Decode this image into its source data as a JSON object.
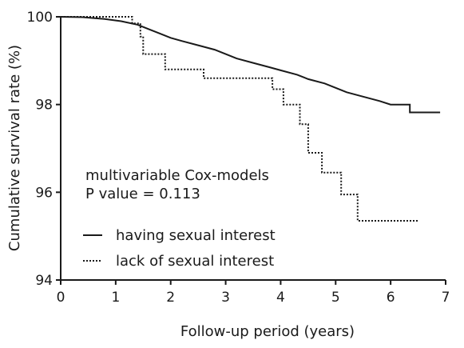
{
  "chart_data": {
    "type": "line",
    "xlabel": "Follow-up period (years)",
    "ylabel": "Cumulative survival rate (%)",
    "xlim": [
      0,
      7
    ],
    "ylim": [
      94,
      100
    ],
    "xticks": [
      "0",
      "1",
      "2",
      "3",
      "4",
      "5",
      "6",
      "7"
    ],
    "yticks": [
      "94",
      "96",
      "98",
      "100"
    ],
    "grid": false,
    "annotation": [
      "multivariable Cox-models",
      "P value = 0.113"
    ],
    "legend_position": "lower-left",
    "series": [
      {
        "name": "having sexual interest",
        "style": "solid",
        "points": [
          [
            0,
            100
          ],
          [
            0.4,
            99.99
          ],
          [
            0.8,
            99.95
          ],
          [
            1.1,
            99.9
          ],
          [
            1.4,
            99.82
          ],
          [
            1.6,
            99.72
          ],
          [
            1.8,
            99.62
          ],
          [
            2.0,
            99.52
          ],
          [
            2.2,
            99.45
          ],
          [
            2.5,
            99.35
          ],
          [
            2.8,
            99.25
          ],
          [
            3.0,
            99.15
          ],
          [
            3.2,
            99.05
          ],
          [
            3.5,
            98.95
          ],
          [
            3.8,
            98.85
          ],
          [
            4.0,
            98.78
          ],
          [
            4.3,
            98.68
          ],
          [
            4.5,
            98.58
          ],
          [
            4.8,
            98.48
          ],
          [
            5.0,
            98.38
          ],
          [
            5.2,
            98.28
          ],
          [
            5.5,
            98.18
          ],
          [
            5.8,
            98.08
          ],
          [
            6.0,
            98.0
          ],
          [
            6.35,
            98.0
          ],
          [
            6.35,
            97.82
          ],
          [
            6.9,
            97.82
          ]
        ]
      },
      {
        "name": "lack of sexual interest",
        "style": "dotted",
        "points": [
          [
            0,
            100
          ],
          [
            1.3,
            100
          ],
          [
            1.3,
            99.85
          ],
          [
            1.45,
            99.85
          ],
          [
            1.45,
            99.55
          ],
          [
            1.5,
            99.55
          ],
          [
            1.5,
            99.15
          ],
          [
            1.9,
            99.15
          ],
          [
            1.9,
            98.8
          ],
          [
            2.6,
            98.8
          ],
          [
            2.6,
            98.6
          ],
          [
            3.85,
            98.6
          ],
          [
            3.85,
            98.35
          ],
          [
            4.05,
            98.35
          ],
          [
            4.05,
            98.0
          ],
          [
            4.35,
            98.0
          ],
          [
            4.35,
            97.55
          ],
          [
            4.5,
            97.55
          ],
          [
            4.5,
            96.9
          ],
          [
            4.75,
            96.9
          ],
          [
            4.75,
            96.45
          ],
          [
            5.1,
            96.45
          ],
          [
            5.1,
            95.95
          ],
          [
            5.4,
            95.95
          ],
          [
            5.4,
            95.35
          ],
          [
            6.5,
            95.35
          ]
        ]
      }
    ]
  }
}
